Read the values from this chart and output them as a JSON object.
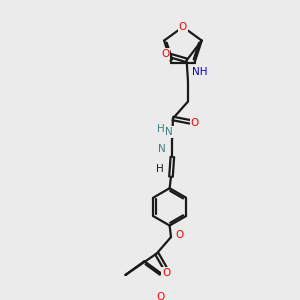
{
  "background_color": "#ebebeb",
  "bond_color": "#1a1a1a",
  "oxygen_color": "#ff0000",
  "nitrogen_color": "#0000cc",
  "teal_color": "#3d8080",
  "line_width": 1.6,
  "figsize": [
    3.0,
    3.0
  ],
  "dpi": 100,
  "xlim": [
    0,
    10
  ],
  "ylim": [
    0,
    10
  ]
}
